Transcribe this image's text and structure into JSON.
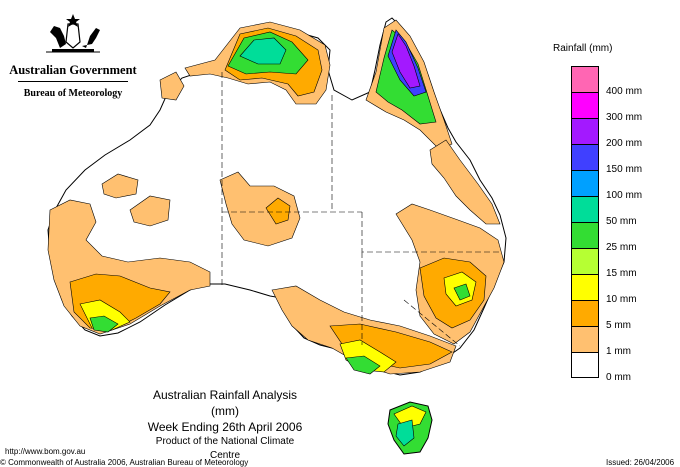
{
  "header": {
    "government": "Australian Government",
    "bureau": "Bureau of Meteorology",
    "crest_icon": "commonwealth-coat-of-arms"
  },
  "map_title": {
    "line1": "Australian Rainfall Analysis (mm)",
    "line2": "Week Ending 26th April 2006",
    "line3": "Product of the National Climate Centre"
  },
  "legend": {
    "title": "Rainfall (mm)",
    "items": [
      {
        "label": "",
        "color": "#ff66b3"
      },
      {
        "label": "400 mm",
        "color": "#ff00ff"
      },
      {
        "label": "300 mm",
        "color": "#a319ff"
      },
      {
        "label": "200 mm",
        "color": "#4040ff"
      },
      {
        "label": "150 mm",
        "color": "#00a0ff"
      },
      {
        "label": "100 mm",
        "color": "#00dd99"
      },
      {
        "label": "50 mm",
        "color": "#33dd33"
      },
      {
        "label": "25 mm",
        "color": "#b6ff33"
      },
      {
        "label": "15 mm",
        "color": "#ffff00"
      },
      {
        "label": "10 mm",
        "color": "#ffaa00"
      },
      {
        "label": "5 mm",
        "color": "#ffc070"
      },
      {
        "label": "1 mm",
        "color": "#ffffff"
      }
    ],
    "zero_label": "0 mm"
  },
  "footer": {
    "url": "http://www.bom.gov.au",
    "copyright": "© Commonwealth of Australia 2006, Australian Bureau of Meteorology",
    "issued": "Issued: 26/04/2006"
  }
}
